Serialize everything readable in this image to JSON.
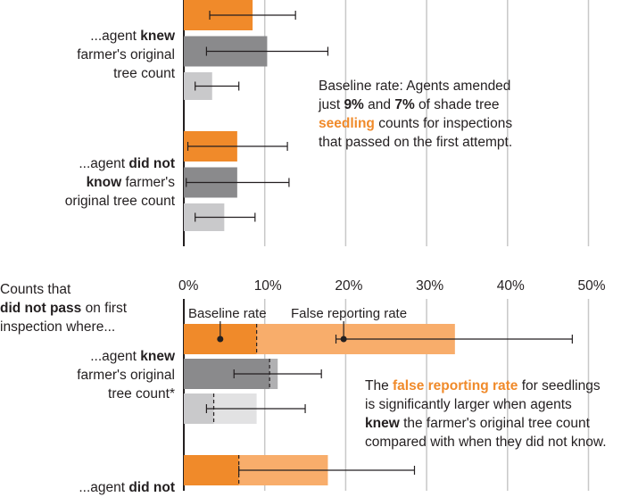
{
  "chart_data": [
    {
      "type": "bar",
      "orientation": "horizontal",
      "title": "",
      "groups": [
        {
          "label_parts": [
            "...agent ",
            "knew",
            " farmer's original",
            "tree count"
          ],
          "bars": [
            {
              "shade": "orange",
              "value": 8.5,
              "err_low": 3.2,
              "err_high": 13.8
            },
            {
              "shade": "dark-gray",
              "value": 10.3,
              "err_low": 2.8,
              "err_high": 17.8
            },
            {
              "shade": "light-gray",
              "value": 3.5,
              "err_low": 1.4,
              "err_high": 6.8
            }
          ]
        },
        {
          "label_parts": [
            "...agent ",
            "did not",
            "know",
            " farmer's",
            "original tree count"
          ],
          "bars": [
            {
              "shade": "orange",
              "value": 6.6,
              "err_low": 0.5,
              "err_high": 12.8
            },
            {
              "shade": "dark-gray",
              "value": 6.6,
              "err_low": 0.3,
              "err_high": 13.0
            },
            {
              "shade": "light-gray",
              "value": 5.0,
              "err_low": 1.4,
              "err_high": 8.8
            }
          ]
        }
      ],
      "xlim": [
        0,
        55
      ],
      "annotation_parts": [
        "Baseline rate: Agents amended",
        "just ",
        "9%",
        " and ",
        "7%",
        " of shade tree",
        "seedling",
        " counts for inspections",
        "that passed on the first attempt."
      ]
    },
    {
      "type": "bar",
      "orientation": "horizontal",
      "stacked": true,
      "title_parts": [
        "Counts that",
        "did not pass",
        " on first",
        "inspection where..."
      ],
      "x_ticks": [
        "0%",
        "10%",
        "20%",
        "30%",
        "40%",
        "50%"
      ],
      "xlim": [
        0,
        55
      ],
      "legend": [
        "Baseline rate",
        "False reporting rate"
      ],
      "groups": [
        {
          "label_parts": [
            "...agent ",
            "knew",
            "farmer's original",
            "tree count*"
          ],
          "bars": [
            {
              "shade": "orange",
              "baseline": 9.0,
              "total": 33.5,
              "err_low": 18.8,
              "err_high": 48.0
            },
            {
              "shade": "dark-gray",
              "baseline": 10.6,
              "total": 11.6,
              "err_low": 6.2,
              "err_high": 17.0
            },
            {
              "shade": "light-gray",
              "baseline": 3.7,
              "total": 9.0,
              "err_low": 2.8,
              "err_high": 15.0
            }
          ]
        },
        {
          "label_parts": [
            "...agent ",
            "did not"
          ],
          "bars": [
            {
              "shade": "orange",
              "baseline": 6.8,
              "total": 17.8,
              "err_low": 6.8,
              "err_high": 28.5
            }
          ]
        }
      ],
      "annotation_parts": [
        "The ",
        "false reporting rate",
        " for seedlings",
        "is significantly larger when agents",
        "knew",
        " the farmer's original tree count",
        "compared with when they did not know."
      ]
    }
  ],
  "colors": {
    "orange": "#f08a2a",
    "orange_light": "#f8ad6b",
    "dark_gray": "#8a8a8c",
    "dark_gray_light": "#b0b0b2",
    "light_gray": "#c9c9cb",
    "light_gray_light": "#e2e2e3",
    "grid": "#c8c8c8",
    "axis": "#231f20"
  }
}
